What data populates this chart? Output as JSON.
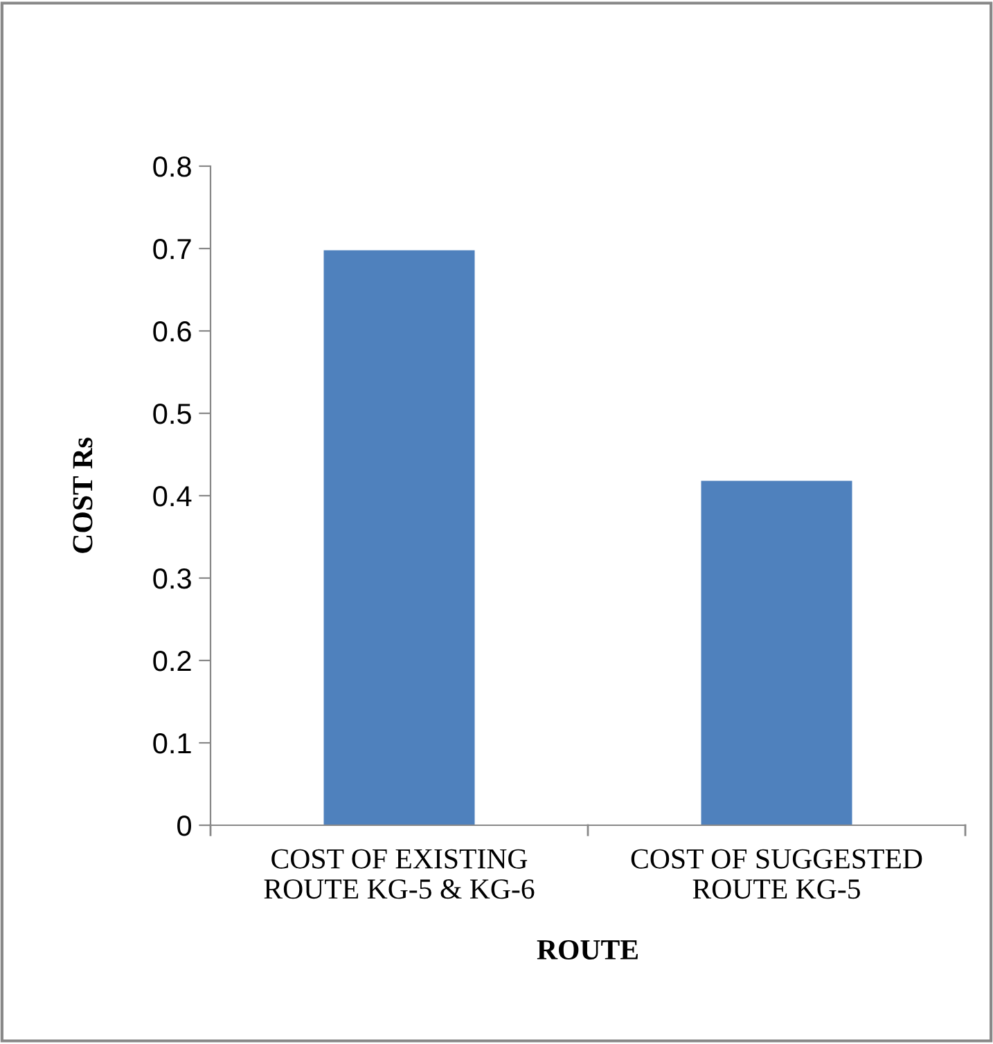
{
  "chart_data": {
    "type": "bar",
    "xlabel": "ROUTE",
    "ylabel": "COST Rs",
    "categories": [
      "COST OF EXISTING\nROUTE KG-5 & KG-6",
      "COST OF SUGGESTED\nROUTE KG-5"
    ],
    "values": [
      0.698,
      0.418
    ],
    "color": "#4f81bd",
    "ylim": [
      0,
      0.8
    ],
    "yticks": [
      0,
      0.1,
      0.2,
      0.3,
      0.4,
      0.5,
      0.6,
      0.7,
      0.8
    ],
    "grid": false,
    "legend": false
  }
}
